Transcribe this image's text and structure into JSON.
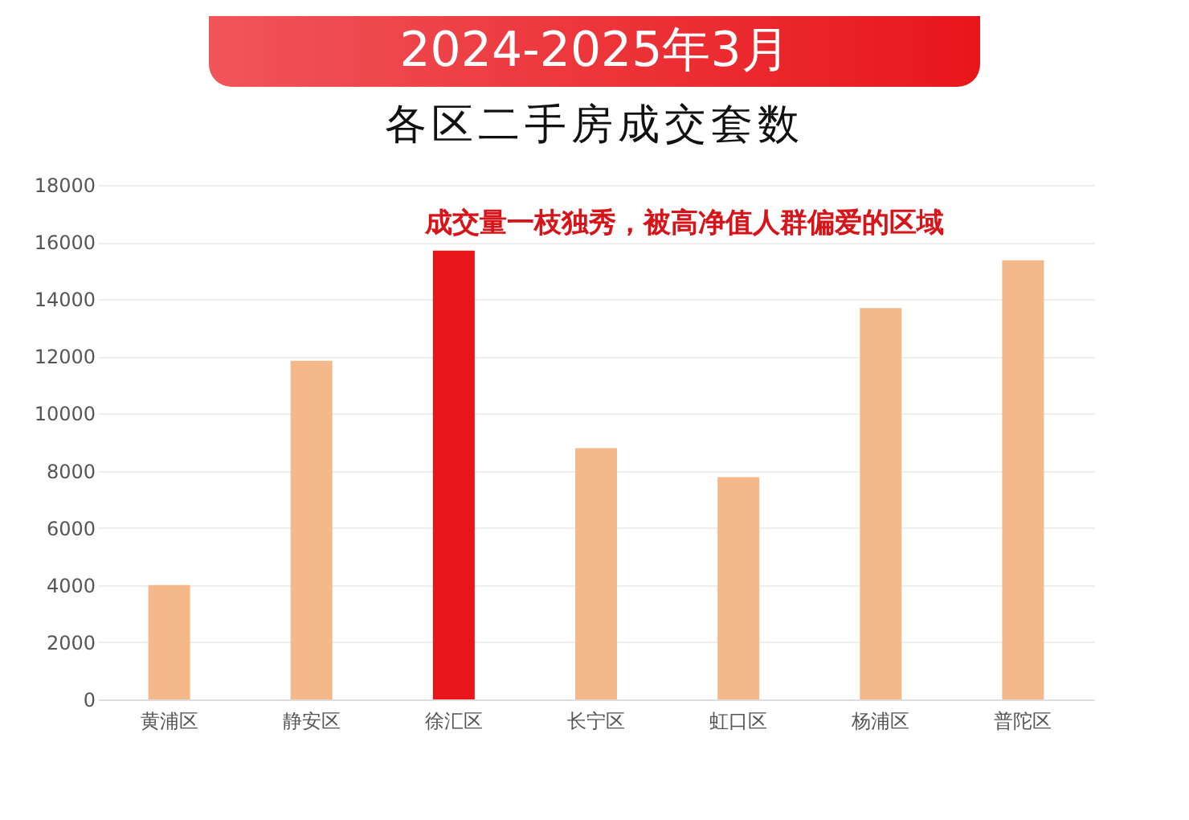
{
  "chart_data": {
    "type": "bar",
    "title": "2024-2025年3月",
    "subtitle": "各区二手房成交套数",
    "categories": [
      "黄浦区",
      "静安区",
      "徐汇区",
      "长宁区",
      "虹口区",
      "杨浦区",
      "普陀区"
    ],
    "values": [
      4000,
      11850,
      15700,
      8790,
      7780,
      13690,
      15360
    ],
    "colors": [
      "#f5b88a",
      "#f5b88a",
      "#e8161b",
      "#f5b88a",
      "#f5b88a",
      "#f5b88a",
      "#f5b88a"
    ],
    "ylim": [
      0,
      18000
    ],
    "yticks": [
      0,
      2000,
      4000,
      6000,
      8000,
      10000,
      12000,
      14000,
      16000,
      18000
    ],
    "grid": "y",
    "annotations": [
      {
        "text": "成交量一枝独秀，被高净值人群偏爱的区域",
        "x": "徐汇区",
        "y": 15700
      }
    ]
  }
}
